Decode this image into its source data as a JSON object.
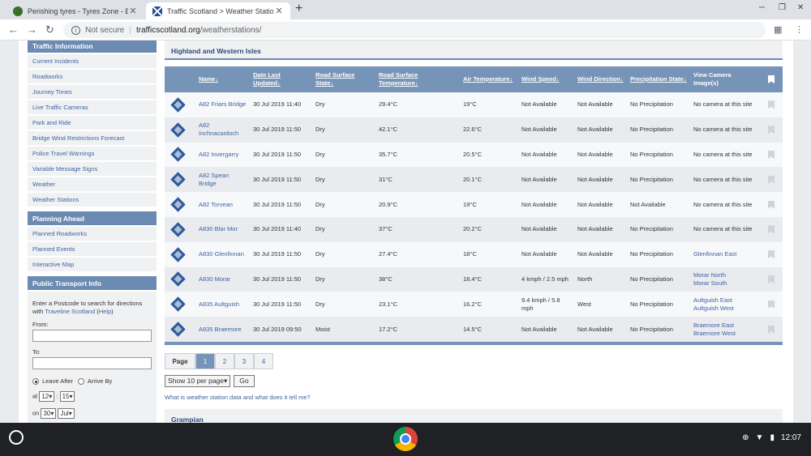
{
  "browser": {
    "tabs": [
      {
        "title": "Perishing tyres - Tyres Zone - BR",
        "close": "✕"
      },
      {
        "title": "Traffic Scotland > Weather Station",
        "close": "✕"
      }
    ],
    "new_tab": "+",
    "window_controls": [
      "─",
      "❐",
      "✕"
    ],
    "address": {
      "security": "Not secure",
      "host": "trafficscotland.org",
      "path": "/weatherstations/"
    }
  },
  "sidebar": {
    "traffic": {
      "heading": "Traffic Information",
      "items": [
        "Current Incidents",
        "Roadworks",
        "Journey Times",
        "Live Traffic Cameras",
        "Park and Ride",
        "Bridge Wind Restrictions Forecast",
        "Police Travel Warnings",
        "Variable Message Signs",
        "Weather",
        "Weather Stations"
      ]
    },
    "planning": {
      "heading": "Planning Ahead",
      "items": [
        "Planned Roadworks",
        "Planned Events",
        "Interactive Map"
      ]
    },
    "transport": {
      "heading": "Public Transport Info",
      "intro": "Enter a Postcode to search for directions with",
      "link": "Traveline Scotland",
      "help_open": "(",
      "help": "Help",
      "help_close": ")",
      "from_label": "From:",
      "to_label": "To:",
      "leave_after": "Leave After",
      "arrive_by": "Arrive By",
      "at_label": "at",
      "hour": "12",
      "colon": ":",
      "minute": "15",
      "on_label": "on",
      "day": "30",
      "month": "Jul"
    }
  },
  "region": {
    "title": "Highland and Western Isles"
  },
  "table": {
    "headers": {
      "name": "Name",
      "date": "Date Last Updated",
      "surface_state": "Road Surface State",
      "surface_temp": "Road Surface Temperature",
      "air_temp": "Air Temperature",
      "wind_speed": "Wind Speed",
      "wind_dir": "Wind Direction",
      "precip": "Precipitation State",
      "camera": "View Camera Image(s)"
    },
    "rows": [
      {
        "name": "A82 Friars Bridge",
        "date": "30 Jul 2019 11:40",
        "surface": "Dry",
        "road_temp": "29.4°C",
        "air_temp": "19°C",
        "wind_speed": "Not Available",
        "wind_dir": "Not Available",
        "precip": "No Precipitation",
        "cam1": "No camera at this site",
        "cam2": ""
      },
      {
        "name": "A82 Inchnacardoch",
        "date": "30 Jul 2019 11:50",
        "surface": "Dry",
        "road_temp": "42.1°C",
        "air_temp": "22.6°C",
        "wind_speed": "Not Available",
        "wind_dir": "Not Available",
        "precip": "No Precipitation",
        "cam1": "No camera at this site",
        "cam2": ""
      },
      {
        "name": "A82 Invergarry",
        "date": "30 Jul 2019 11:50",
        "surface": "Dry",
        "road_temp": "35.7°C",
        "air_temp": "20.5°C",
        "wind_speed": "Not Available",
        "wind_dir": "Not Available",
        "precip": "No Precipitation",
        "cam1": "No camera at this site",
        "cam2": ""
      },
      {
        "name": "A82 Spean Bridge",
        "date": "30 Jul 2019 11:50",
        "surface": "Dry",
        "road_temp": "31°C",
        "air_temp": "20.1°C",
        "wind_speed": "Not Available",
        "wind_dir": "Not Available",
        "precip": "No Precipitation",
        "cam1": "No camera at this site",
        "cam2": ""
      },
      {
        "name": "A82 Torvean",
        "date": "30 Jul 2019 11:50",
        "surface": "Dry",
        "road_temp": "20.9°C",
        "air_temp": "19°C",
        "wind_speed": "Not Available",
        "wind_dir": "Not Available",
        "precip": "Not Available",
        "cam1": "No camera at this site",
        "cam2": ""
      },
      {
        "name": "A830 Blar Mor",
        "date": "30 Jul 2019 11:40",
        "surface": "Dry",
        "road_temp": "37°C",
        "air_temp": "20.2°C",
        "wind_speed": "Not Available",
        "wind_dir": "Not Available",
        "precip": "No Precipitation",
        "cam1": "No camera at this site",
        "cam2": ""
      },
      {
        "name": "A830 Glenfinnan",
        "date": "30 Jul 2019 11:50",
        "surface": "Dry",
        "road_temp": "27.4°C",
        "air_temp": "18°C",
        "wind_speed": "Not Available",
        "wind_dir": "Not Available",
        "precip": "No Precipitation",
        "cam1": "Glenfinnan East",
        "cam2": ""
      },
      {
        "name": "A830 Morar",
        "date": "30 Jul 2019 11:50",
        "surface": "Dry",
        "road_temp": "38°C",
        "air_temp": "18.4°C",
        "wind_speed": "4 kmph / 2.5 mph",
        "wind_dir": "North",
        "precip": "No Precipitation",
        "cam1": "Morar North",
        "cam2": "Morar South"
      },
      {
        "name": "A835 Aultguish",
        "date": "30 Jul 2019 11:50",
        "surface": "Dry",
        "road_temp": "23.1°C",
        "air_temp": "16.2°C",
        "wind_speed": "9.4 kmph / 5.8 mph",
        "wind_dir": "West",
        "precip": "No Precipitation",
        "cam1": "Aultguish East",
        "cam2": "Aultguish West"
      },
      {
        "name": "A835 Braemore",
        "date": "30 Jul 2019 09:50",
        "surface": "Moist",
        "road_temp": "17.2°C",
        "air_temp": "14.5°C",
        "wind_speed": "Not Available",
        "wind_dir": "Not Available",
        "precip": "No Precipitation",
        "cam1": "Braemore East",
        "cam2": "Braemore West"
      }
    ]
  },
  "pager": {
    "label": "Page",
    "pages": [
      "1",
      "2",
      "3",
      "4"
    ]
  },
  "show": {
    "select": "Show 10 per page",
    "go": "Go"
  },
  "info_link": "What is weather station data and what does it tell me?",
  "region2": {
    "title": "Grampian"
  },
  "shelf": {
    "time": "12:07"
  }
}
